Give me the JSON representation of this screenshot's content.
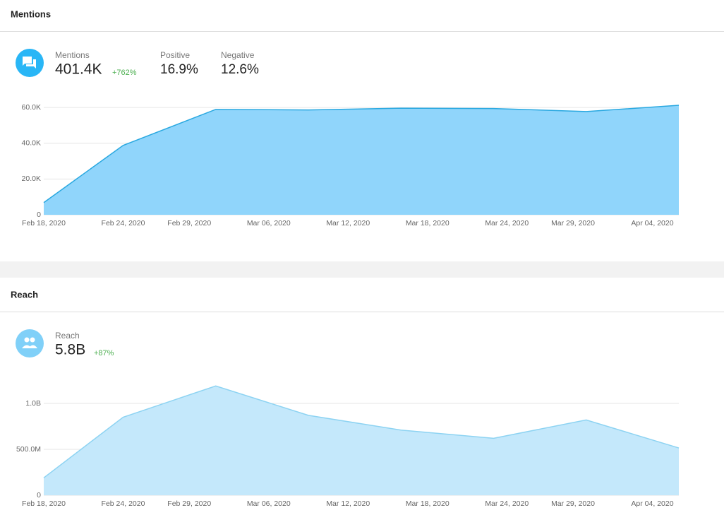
{
  "panels": [
    {
      "title": "Mentions",
      "metric": {
        "label": "Mentions",
        "value": "401.4K",
        "change": "+762%"
      },
      "stats": [
        {
          "label": "Positive",
          "value": "16.9%"
        },
        {
          "label": "Negative",
          "value": "12.6%"
        }
      ]
    },
    {
      "title": "Reach",
      "metric": {
        "label": "Reach",
        "value": "5.8B",
        "change": "+87%"
      }
    }
  ],
  "chart_data": [
    {
      "type": "area",
      "x": [
        "Feb 18, 2020",
        "Feb 24, 2020",
        "Mar 02, 2020",
        "Mar 09, 2020",
        "Mar 16, 2020",
        "Mar 23, 2020",
        "Mar 30, 2020",
        "Apr 06, 2020"
      ],
      "values": [
        6800,
        38800,
        58900,
        58600,
        59600,
        59400,
        57700,
        61200
      ],
      "color": "#90d5fb",
      "line_color": "#29a8e0",
      "xlim": [
        "Feb 18, 2020",
        "Apr 06, 2020"
      ],
      "xticks": [
        "Feb 18, 2020",
        "Feb 24, 2020",
        "Feb 29, 2020",
        "Mar 06, 2020",
        "Mar 12, 2020",
        "Mar 18, 2020",
        "Mar 24, 2020",
        "Mar 29, 2020",
        "Apr 04, 2020"
      ],
      "ylim": [
        0,
        62000
      ],
      "yticks": [
        0,
        {
          "value": 20000,
          "label": "20.0K"
        },
        {
          "value": 40000,
          "label": "40.0K"
        },
        {
          "value": 60000,
          "label": "60.0K"
        }
      ],
      "grid": true
    },
    {
      "type": "area",
      "x": [
        "Feb 18, 2020",
        "Feb 24, 2020",
        "Mar 02, 2020",
        "Mar 09, 2020",
        "Mar 16, 2020",
        "Mar 23, 2020",
        "Mar 30, 2020",
        "Apr 06, 2020"
      ],
      "values": [
        190000000,
        850000000,
        1190000000,
        870000000,
        710000000,
        620000000,
        820000000,
        515000000
      ],
      "color": "#c4e8fb",
      "line_color": "#8dd3f2",
      "xlim": [
        "Feb 18, 2020",
        "Apr 06, 2020"
      ],
      "xticks": [
        "Feb 18, 2020",
        "Feb 24, 2020",
        "Feb 29, 2020",
        "Mar 06, 2020",
        "Mar 12, 2020",
        "Mar 18, 2020",
        "Mar 24, 2020",
        "Mar 29, 2020",
        "Apr 04, 2020"
      ],
      "ylim": [
        0,
        1200000000
      ],
      "yticks": [
        0,
        {
          "value": 500000000,
          "label": "500.0M"
        },
        {
          "value": 1000000000,
          "label": "1.0B"
        }
      ],
      "grid": true
    }
  ]
}
